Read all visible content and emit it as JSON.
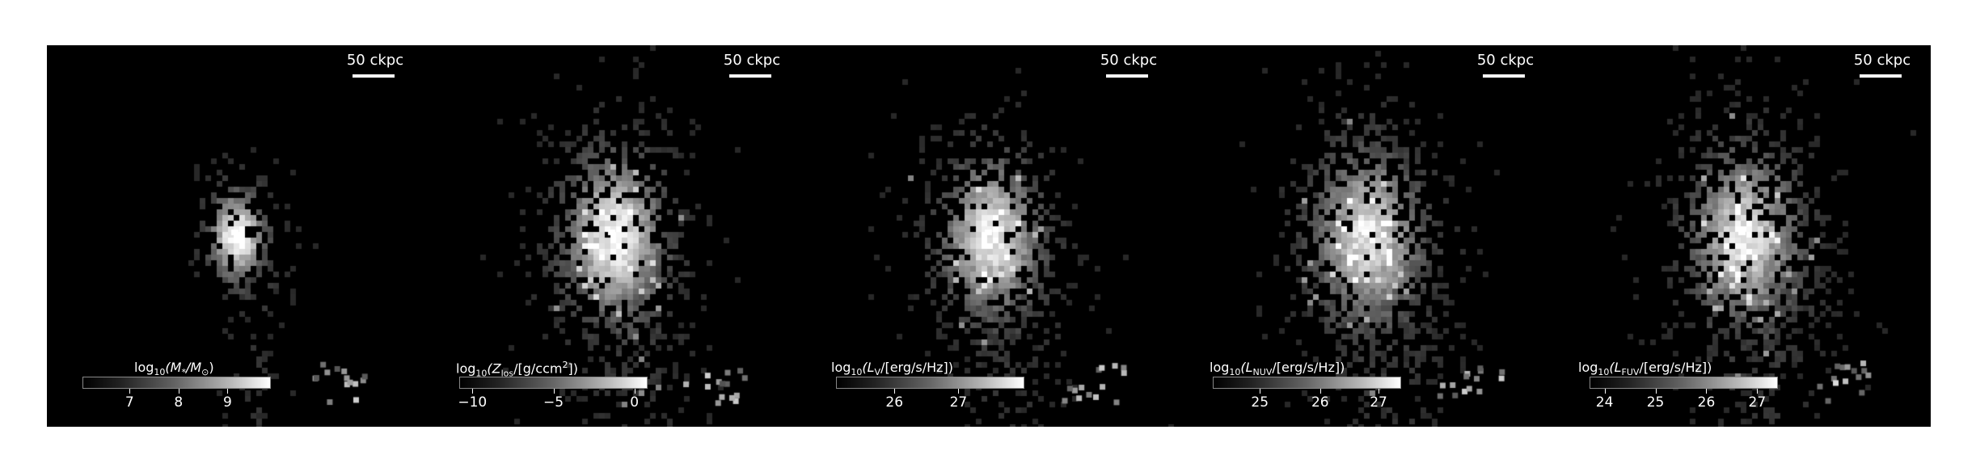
{
  "scale_label": "50 ckpc",
  "panels": [
    {
      "title_pre": "log",
      "title_sub": "10",
      "title_main": "(M",
      "title_main_sub": "*",
      "title_end": "/M",
      "title_end_sub": "⊙",
      "title_close": ")",
      "ticks": [
        {
          "label": "7",
          "pos": 0.25
        },
        {
          "label": "8",
          "pos": 0.51
        },
        {
          "label": "9",
          "pos": 0.77
        }
      ],
      "seed": 11,
      "spread": 0.55,
      "core": 1.0
    },
    {
      "title_pre": "log",
      "title_sub": "10",
      "title_main": "(Z",
      "title_main_sub": "los",
      "title_end": "/[g/ccm",
      "title_end_sup": "2",
      "title_close": "])",
      "ticks": [
        {
          "label": "−10",
          "pos": 0.07
        },
        {
          "label": "−5",
          "pos": 0.5
        },
        {
          "label": "0",
          "pos": 0.93
        }
      ],
      "seed": 23,
      "spread": 1.0,
      "core": 0.9
    },
    {
      "title_pre": "log",
      "title_sub": "10",
      "title_main": "(L",
      "title_main_sub": "V",
      "title_end": "/[erg/s/Hz])",
      "title_close": "",
      "ticks": [
        {
          "label": "26",
          "pos": 0.31
        },
        {
          "label": "27",
          "pos": 0.65
        }
      ],
      "seed": 37,
      "spread": 0.95,
      "core": 0.85
    },
    {
      "title_pre": "log",
      "title_sub": "10",
      "title_main": "(L",
      "title_main_sub": "NUV",
      "title_end": "/[erg/s/Hz])",
      "title_close": "",
      "ticks": [
        {
          "label": "25",
          "pos": 0.25
        },
        {
          "label": "26",
          "pos": 0.57
        },
        {
          "label": "27",
          "pos": 0.88
        }
      ],
      "seed": 51,
      "spread": 1.05,
      "core": 0.8
    },
    {
      "title_pre": "log",
      "title_sub": "10",
      "title_main": "(L",
      "title_main_sub": "FUV",
      "title_end": "/[erg/s/Hz])",
      "title_close": "",
      "ticks": [
        {
          "label": "24",
          "pos": 0.08
        },
        {
          "label": "25",
          "pos": 0.35
        },
        {
          "label": "26",
          "pos": 0.62
        },
        {
          "label": "27",
          "pos": 0.89
        }
      ],
      "seed": 67,
      "spread": 1.05,
      "core": 0.8
    }
  ]
}
